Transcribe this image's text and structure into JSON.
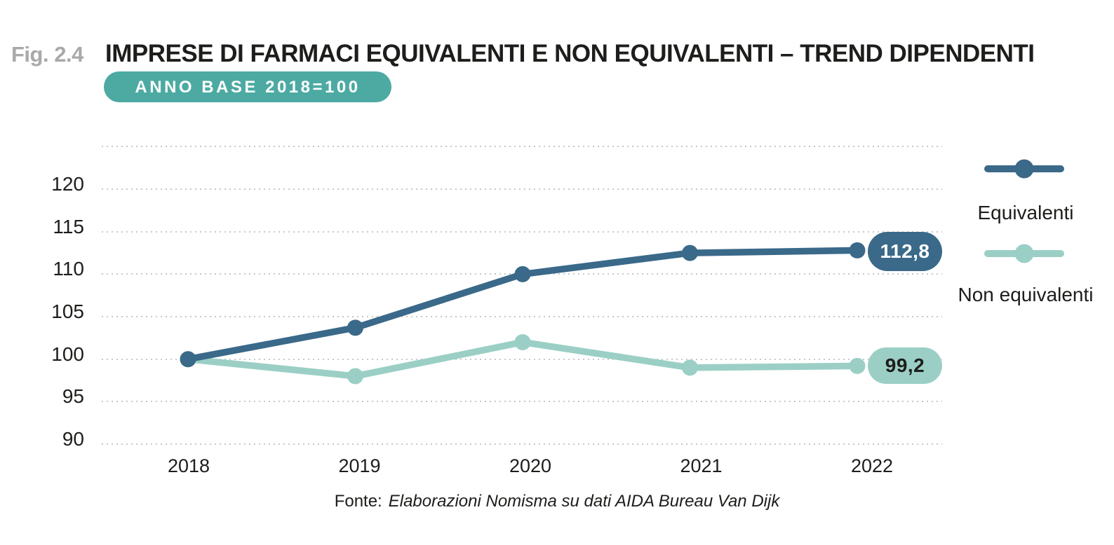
{
  "page": {
    "fig_label": "Fig. 2.4",
    "title": "IMPRESE DI FARMACI EQUIVALENTI E NON EQUIVALENTI – TREND DIPENDENTI",
    "subtitle_badge": "ANNO BASE 2018=100",
    "source_label": "Fonte:",
    "source_text": "Elaborazioni Nomisma su dati AIDA Bureau Van Dijk"
  },
  "colors": {
    "equivalenti_blue": "#3a6989",
    "non_equivalenti_teal": "#9bcfc6",
    "badge_teal": "#4caaa3",
    "text_dark": "#1d1d1b",
    "fig_label_gray": "#a9a9a9",
    "grid_gray": "#c8c8c8"
  },
  "chart_data": {
    "type": "line",
    "title": "IMPRESE DI FARMACI EQUIVALENTI E NON EQUIVALENTI – TREND DIPENDENTI",
    "subtitle": "ANNO BASE 2018=100",
    "categories": [
      "2018",
      "2019",
      "2020",
      "2021",
      "2022"
    ],
    "series": [
      {
        "name": "Equivalenti",
        "color": "#3a6989",
        "values": [
          100,
          103.7,
          110,
          112.5,
          112.8
        ],
        "end_label": "112,8"
      },
      {
        "name": "Non equivalenti",
        "color": "#9bcfc6",
        "values": [
          100,
          98,
          102,
          99,
          99.2
        ],
        "end_label": "99,2"
      }
    ],
    "ylim": [
      90,
      125
    ],
    "yticks": [
      120,
      115,
      110,
      105,
      100,
      95,
      90
    ],
    "unlabeled_top_gridline": 125,
    "grid": "dotted-horizontal",
    "legend_position": "right",
    "source": "Fonte: Elaborazioni Nomisma su dati AIDA Bureau Van Dijk"
  }
}
